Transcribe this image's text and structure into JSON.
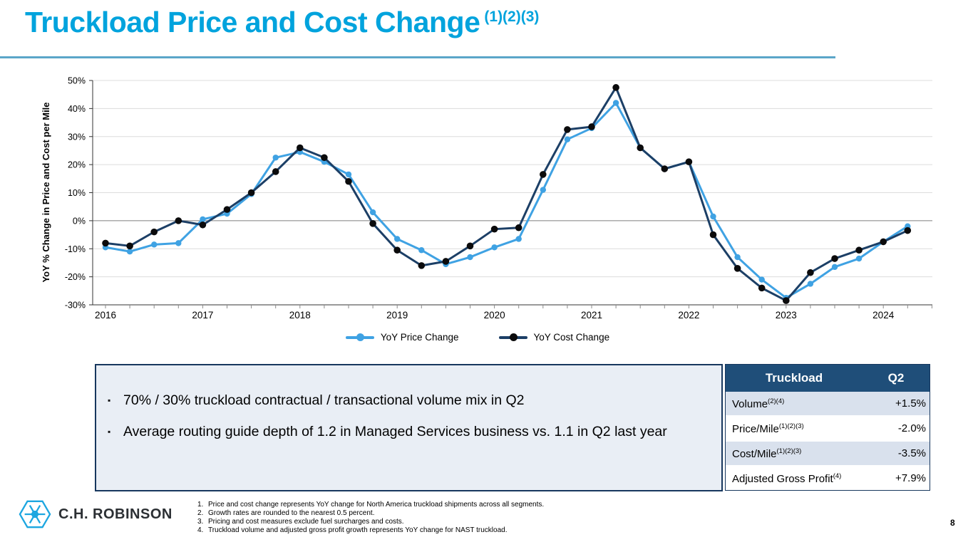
{
  "slide": {
    "title": "Truckload Price and Cost Change",
    "title_superscript": "(1)(2)(3)",
    "page_number": "8",
    "accent_color": "#00A3DD",
    "rule_color": "#5BA6C9"
  },
  "chart_data": {
    "type": "line",
    "title": "",
    "xlabel": "",
    "ylabel": "YoY % Change in Price and Cost per Mile",
    "ylim": [
      -30,
      50
    ],
    "ytick_step": 10,
    "ytick_suffix": "%",
    "grid": "horizontal",
    "zero_line": true,
    "legend_position": "bottom",
    "x_years": [
      "2016",
      "2017",
      "2018",
      "2019",
      "2020",
      "2021",
      "2022",
      "2023",
      "2024"
    ],
    "points_per_year": 4,
    "x_range_note": "quarterly points 2016 Q1 through 2024 Q2, values in percent",
    "series": [
      {
        "name": "YoY Price Change",
        "color": "#3FA2E3",
        "marker_color": "#3FA2E3",
        "values": [
          -9.5,
          -11,
          -8.5,
          -8,
          0.5,
          2.5,
          9.5,
          22.5,
          24.5,
          21,
          16.5,
          3,
          -6.5,
          -10.5,
          -15.5,
          -13,
          -9.5,
          -6.5,
          11,
          29,
          33,
          42,
          26,
          18.5,
          21,
          1.5,
          -13,
          -21,
          -27.5,
          -22.5,
          -16.5,
          -13.5,
          -7.5,
          -2
        ]
      },
      {
        "name": "YoY Cost Change",
        "color": "#1C3F66",
        "marker_color": "#0B0B0C",
        "values": [
          -8,
          -9,
          -4,
          0,
          -1.5,
          4,
          10,
          17.5,
          26,
          22.5,
          14,
          -1,
          -10.5,
          -16,
          -14.5,
          -9,
          -3,
          -2.5,
          16.5,
          32.5,
          33.5,
          47.5,
          26,
          18.5,
          21,
          -5,
          -17,
          -24,
          -28.5,
          -18.5,
          -13.5,
          -10.5,
          -7.5,
          -3.5
        ]
      }
    ]
  },
  "bullets": [
    {
      "text": "70% / 30% truckload contractual / transactional volume mix in Q2"
    },
    {
      "text": "Average routing guide depth of 1.2 in Managed Services business vs. 1.1 in Q2 last year"
    }
  ],
  "table": {
    "header": {
      "col1": "Truckload",
      "col2": "Q2"
    },
    "header_bg": "#1F4E79",
    "alt_row_bg": "#D9E1ED",
    "rows": [
      {
        "label": "Volume",
        "sup": "(2)(4)",
        "value": "+1.5%"
      },
      {
        "label": "Price/Mile",
        "sup": "(1)(2)(3)",
        "value": "-2.0%"
      },
      {
        "label": "Cost/Mile",
        "sup": "(1)(2)(3)",
        "value": "-3.5%"
      },
      {
        "label": "Adjusted Gross Profit",
        "sup": "(4)",
        "value": "+7.9%"
      }
    ]
  },
  "footer": {
    "logo_text": "C.H. ROBINSON",
    "logo_color": "#1CA6E0",
    "footnotes": [
      {
        "num": "1.",
        "text": "Price and cost change represents YoY change for North America truckload shipments across all segments."
      },
      {
        "num": "2.",
        "text": "Growth rates are rounded to the nearest 0.5 percent."
      },
      {
        "num": "3.",
        "text": "Pricing and cost measures exclude fuel surcharges and costs."
      },
      {
        "num": "4.",
        "text": "Truckload volume and adjusted gross profit growth represents YoY change for NAST truckload."
      }
    ]
  }
}
